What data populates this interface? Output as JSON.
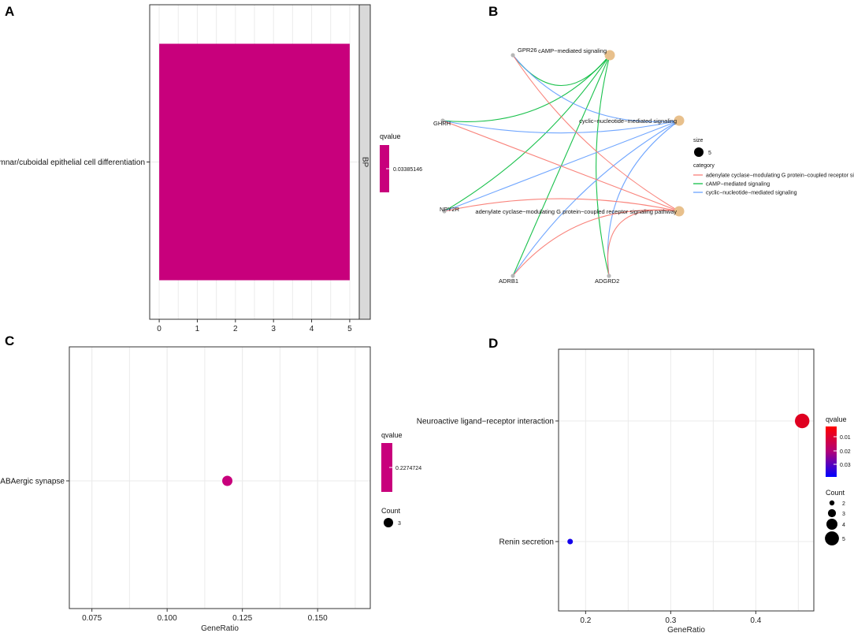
{
  "panels": {
    "A": {
      "letter": "A"
    },
    "B": {
      "letter": "B"
    },
    "C": {
      "letter": "C"
    },
    "D": {
      "letter": "D"
    }
  },
  "chart_data": [
    {
      "panel": "A",
      "type": "bar",
      "orientation": "horizontal",
      "categories": [
        "columnar/cuboidal epithelial cell differentiation"
      ],
      "values": [
        5
      ],
      "xlim": [
        -0.25,
        5.25
      ],
      "xticks": [
        "0",
        "1",
        "2",
        "3",
        "4",
        "5"
      ],
      "facet_label": "BP",
      "bar_color": "#c8007c",
      "legend": {
        "title": "qvalue",
        "labels": [
          "0.03385146"
        ],
        "colors": [
          "#c8007c"
        ],
        "placement": "right"
      },
      "grid": true
    },
    {
      "panel": "B",
      "type": "network",
      "gene_nodes": [
        "GPR26",
        "GHRH",
        "NPY2R",
        "ADRB1",
        "ADGRD2"
      ],
      "category_nodes": [
        "cAMP−mediated signaling",
        "cyclic−nucleotide−mediated signaling",
        "adenylate cyclase−modulating G protein−coupled receptor signaling pathway"
      ],
      "node_size_color": "#e8c08c",
      "gene_node_color": "#b7b7b7",
      "edges": [
        {
          "from": "GPR26",
          "to": "cAMP−mediated signaling",
          "category": "cAMP−mediated signaling"
        },
        {
          "from": "GHRH",
          "to": "cAMP−mediated signaling",
          "category": "cAMP−mediated signaling"
        },
        {
          "from": "NPY2R",
          "to": "cAMP−mediated signaling",
          "category": "cAMP−mediated signaling"
        },
        {
          "from": "ADRB1",
          "to": "cAMP−mediated signaling",
          "category": "cAMP−mediated signaling"
        },
        {
          "from": "ADGRD2",
          "to": "cAMP−mediated signaling",
          "category": "cAMP−mediated signaling"
        },
        {
          "from": "GPR26",
          "to": "cyclic−nucleotide−mediated signaling",
          "category": "cyclic−nucleotide−mediated signaling"
        },
        {
          "from": "GHRH",
          "to": "cyclic−nucleotide−mediated signaling",
          "category": "cyclic−nucleotide−mediated signaling"
        },
        {
          "from": "NPY2R",
          "to": "cyclic−nucleotide−mediated signaling",
          "category": "cyclic−nucleotide−mediated signaling"
        },
        {
          "from": "ADRB1",
          "to": "cyclic−nucleotide−mediated signaling",
          "category": "cyclic−nucleotide−mediated signaling"
        },
        {
          "from": "ADGRD2",
          "to": "cyclic−nucleotide−mediated signaling",
          "category": "cyclic−nucleotide−mediated signaling"
        },
        {
          "from": "GPR26",
          "to": "adenylate cyclase−modulating G protein−coupled receptor signaling pathway",
          "category": "adenylate cyclase−modulating G protein−coupled receptor signaling pathway"
        },
        {
          "from": "GHRH",
          "to": "adenylate cyclase−modulating G protein−coupled receptor signaling pathway",
          "category": "adenylate cyclase−modulating G protein−coupled receptor signaling pathway"
        },
        {
          "from": "NPY2R",
          "to": "adenylate cyclase−modulating G protein−coupled receptor signaling pathway",
          "category": "adenylate cyclase−modulating G protein−coupled receptor signaling pathway"
        },
        {
          "from": "ADRB1",
          "to": "adenylate cyclase−modulating G protein−coupled receptor signaling pathway",
          "category": "adenylate cyclase−modulating G protein−coupled receptor signaling pathway"
        },
        {
          "from": "ADGRD2",
          "to": "adenylate cyclase−modulating G protein−coupled receptor signaling pathway",
          "category": "adenylate cyclase−modulating G protein−coupled receptor signaling pathway"
        }
      ],
      "legend": {
        "size_title": "size",
        "size_label": "5",
        "category_title": "category",
        "categories": [
          {
            "label": "adenylate cyclase−modulating G protein−coupled receptor signaling pathway",
            "color": "#f8766d"
          },
          {
            "label": "cAMP−mediated signaling",
            "color": "#00ba38"
          },
          {
            "label": "cyclic−nucleotide−mediated signaling",
            "color": "#619cff"
          }
        ],
        "placement": "right"
      }
    },
    {
      "panel": "C",
      "type": "scatter",
      "categories": [
        "GABAergic synapse"
      ],
      "points": [
        {
          "category": "GABAergic synapse",
          "x": 0.12,
          "count": 3,
          "qvalue": 0.2274724
        }
      ],
      "xlim": [
        0.0675,
        0.1675
      ],
      "xticks": [
        0.075,
        0.1,
        0.125,
        0.15
      ],
      "xtick_labels": [
        "0.075",
        "0.100",
        "0.125",
        "0.150"
      ],
      "xlabel": "GeneRatio",
      "point_color": "#c8007c",
      "legend": {
        "color_title": "qvalue",
        "color_labels": [
          "0.2274724"
        ],
        "color": "#c8007c",
        "size_title": "Count",
        "size_labels": [
          "3"
        ],
        "placement": "right"
      },
      "grid": true
    },
    {
      "panel": "D",
      "type": "scatter",
      "categories": [
        "Neuroactive ligand−receptor interaction",
        "Renin secretion"
      ],
      "points": [
        {
          "category": "Neuroactive ligand−receptor interaction",
          "x": 0.4545,
          "count": 5,
          "qvalue": 0.005
        },
        {
          "category": "Renin secretion",
          "x": 0.1818,
          "count": 2,
          "qvalue": 0.037
        }
      ],
      "xlim": [
        0.1682,
        0.4682
      ],
      "xticks": [
        0.2,
        0.3,
        0.4
      ],
      "xtick_labels": [
        "0.2",
        "0.3",
        "0.4"
      ],
      "xlabel": "GeneRatio",
      "legend": {
        "color_title": "qvalue",
        "color_range": [
          0.0,
          0.04
        ],
        "color_ticks": [
          "0.01",
          "0.02",
          "0.03"
        ],
        "color_low": "#ff0000",
        "color_high": "#0000ff",
        "size_title": "Count",
        "size_labels": [
          "2",
          "3",
          "4",
          "5"
        ],
        "placement": "right"
      },
      "grid": true
    }
  ]
}
